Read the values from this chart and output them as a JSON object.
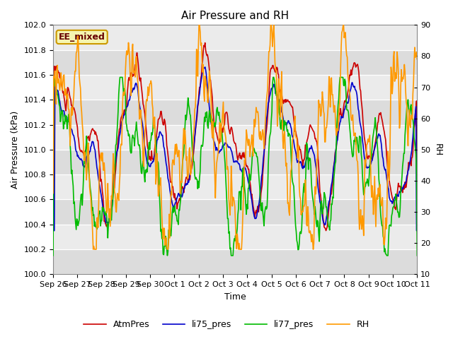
{
  "title": "Air Pressure and RH",
  "xlabel": "Time",
  "ylabel_left": "Air Pressure (kPa)",
  "ylabel_right": "RH",
  "annotation": "EE_mixed",
  "ylim_left": [
    100.0,
    102.0
  ],
  "ylim_right": [
    10,
    90
  ],
  "yticks_left": [
    100.0,
    100.2,
    100.4,
    100.6,
    100.8,
    101.0,
    101.2,
    101.4,
    101.6,
    101.8,
    102.0
  ],
  "yticks_right": [
    10,
    20,
    30,
    40,
    50,
    60,
    70,
    80,
    90
  ],
  "xtick_labels": [
    "Sep 26",
    "Sep 27",
    "Sep 28",
    "Sep 29",
    "Sep 30",
    "Oct 1",
    "Oct 2",
    "Oct 3",
    "Oct 4",
    "Oct 5",
    "Oct 6",
    "Oct 7",
    "Oct 8",
    "Oct 9",
    "Oct 10",
    "Oct 11"
  ],
  "n_points": 600,
  "colors": {
    "AtmPres": "#cc0000",
    "li75_pres": "#0000cc",
    "li77_pres": "#00bb00",
    "RH": "#ff9900"
  },
  "legend_labels": [
    "AtmPres",
    "li75_pres",
    "li77_pres",
    "RH"
  ],
  "band_colors": [
    "#dcdcdc",
    "#ebebeb"
  ],
  "fig_color": "#ffffff",
  "linewidth": 1.2
}
